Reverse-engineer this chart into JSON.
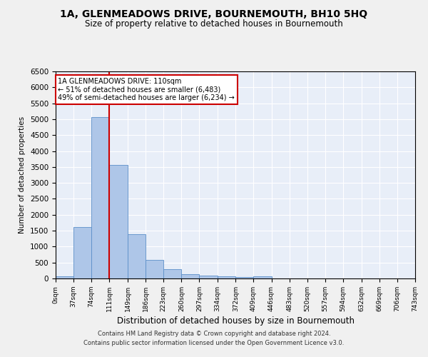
{
  "title": "1A, GLENMEADOWS DRIVE, BOURNEMOUTH, BH10 5HQ",
  "subtitle": "Size of property relative to detached houses in Bournemouth",
  "xlabel": "Distribution of detached houses by size in Bournemouth",
  "ylabel": "Number of detached properties",
  "bar_edges": [
    0,
    37,
    74,
    111,
    149,
    186,
    223,
    260,
    297,
    334,
    372,
    409,
    446,
    483,
    520,
    557,
    594,
    632,
    669,
    706,
    743
  ],
  "bar_heights": [
    75,
    1620,
    5070,
    3570,
    1400,
    590,
    285,
    135,
    100,
    65,
    55,
    65,
    0,
    0,
    0,
    0,
    0,
    0,
    0,
    0
  ],
  "bar_color": "#aec6e8",
  "bar_edgecolor": "#5b8fc9",
  "vline_x": 110,
  "vline_color": "#cc0000",
  "ylim": [
    0,
    6500
  ],
  "yticks": [
    0,
    500,
    1000,
    1500,
    2000,
    2500,
    3000,
    3500,
    4000,
    4500,
    5000,
    5500,
    6000,
    6500
  ],
  "annotation_title": "1A GLENMEADOWS DRIVE: 110sqm",
  "annotation_line1": "← 51% of detached houses are smaller (6,483)",
  "annotation_line2": "49% of semi-detached houses are larger (6,234) →",
  "annotation_box_color": "#cc0000",
  "footer_line1": "Contains HM Land Registry data © Crown copyright and database right 2024.",
  "footer_line2": "Contains public sector information licensed under the Open Government Licence v3.0.",
  "bg_color": "#e8eef8",
  "grid_color": "#ffffff",
  "title_fontsize": 10,
  "subtitle_fontsize": 8.5
}
